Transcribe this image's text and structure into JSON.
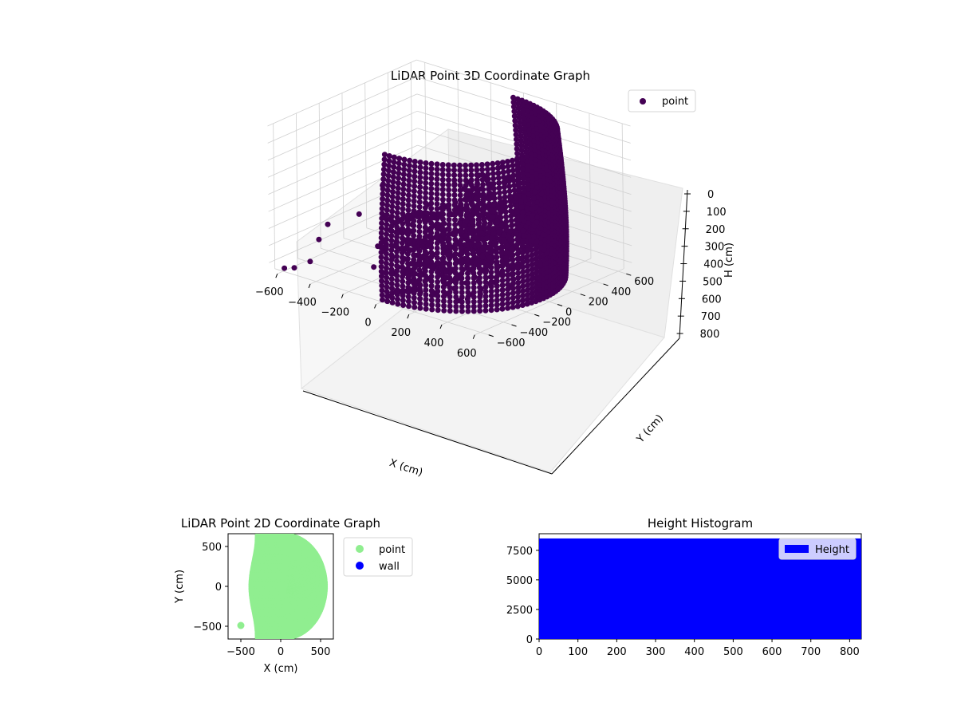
{
  "chart_data": [
    {
      "type": "scatter",
      "projection": "3d",
      "title": "LiDAR Point 3D Coordinate Graph",
      "xlabel": "X (cm)",
      "ylabel": "Y (cm)",
      "zlabel": "H (cm)",
      "xticks": [
        "−600",
        "−400",
        "−200",
        "0",
        "200",
        "400",
        "600"
      ],
      "yticks": [
        "−600",
        "−400",
        "−200",
        "0",
        "200",
        "400",
        "600"
      ],
      "zticks": [
        "0",
        "100",
        "200",
        "300",
        "400",
        "500",
        "600",
        "700",
        "800"
      ],
      "xlim": [
        -650,
        650
      ],
      "ylim": [
        -650,
        650
      ],
      "zlim": [
        0,
        850
      ],
      "z_inverted": true,
      "grid": true,
      "legend": {
        "placement": "top-right",
        "entries": [
          {
            "label": "point",
            "color": "#440154"
          }
        ]
      },
      "series": [
        {
          "name": "point",
          "color": "#440154",
          "shape": "half-ellipse point cloud, X 0..600, Y -600..600, H 0..850"
        }
      ],
      "outliers": [
        {
          "x": -620,
          "y": -560,
          "h": 850
        },
        {
          "x": -560,
          "y": -560,
          "h": 830
        },
        {
          "x": -540,
          "y": -450,
          "h": 820
        },
        {
          "x": -520,
          "y": -400,
          "h": 700
        },
        {
          "x": -500,
          "y": -350,
          "h": 620
        },
        {
          "x": -470,
          "y": -120,
          "h": 620
        },
        {
          "x": -480,
          "y": 100,
          "h": 520
        },
        {
          "x": -200,
          "y": -300,
          "h": 680
        },
        {
          "x": -180,
          "y": -200,
          "h": 620
        }
      ]
    },
    {
      "type": "scatter",
      "title": "LiDAR Point 2D Coordinate Graph",
      "xlabel": "X (cm)",
      "ylabel": "Y (cm)",
      "xticks": [
        "−500",
        "0",
        "500"
      ],
      "yticks": [
        "−500",
        "0",
        "500"
      ],
      "xlim": [
        -660,
        660
      ],
      "ylim": [
        -660,
        660
      ],
      "legend": {
        "placement": "outside-right",
        "entries": [
          {
            "label": "point",
            "color": "#90ee90"
          },
          {
            "label": "wall",
            "color": "#0000ff"
          }
        ]
      },
      "series": [
        {
          "name": "point",
          "color": "#90ee90",
          "shape": "half-disc, X -400..560, Y -650..650"
        },
        {
          "name": "wall",
          "color": "#0000ff",
          "points": []
        }
      ],
      "outliers": [
        {
          "x": -500,
          "y": -490
        }
      ]
    },
    {
      "type": "bar",
      "title": "Height Histogram",
      "xticks": [
        "0",
        "100",
        "200",
        "300",
        "400",
        "500",
        "600",
        "700",
        "800"
      ],
      "yticks": [
        "0",
        "2500",
        "5000",
        "7500"
      ],
      "xlim": [
        0,
        830
      ],
      "ylim": [
        0,
        8900
      ],
      "legend": {
        "placement": "top-right",
        "entries": [
          {
            "label": "Height",
            "color": "#0000ff"
          }
        ]
      },
      "series": [
        {
          "name": "Height",
          "color": "#0000ff",
          "bins": [
            0,
            830
          ],
          "values": [
            8500
          ]
        }
      ]
    }
  ]
}
